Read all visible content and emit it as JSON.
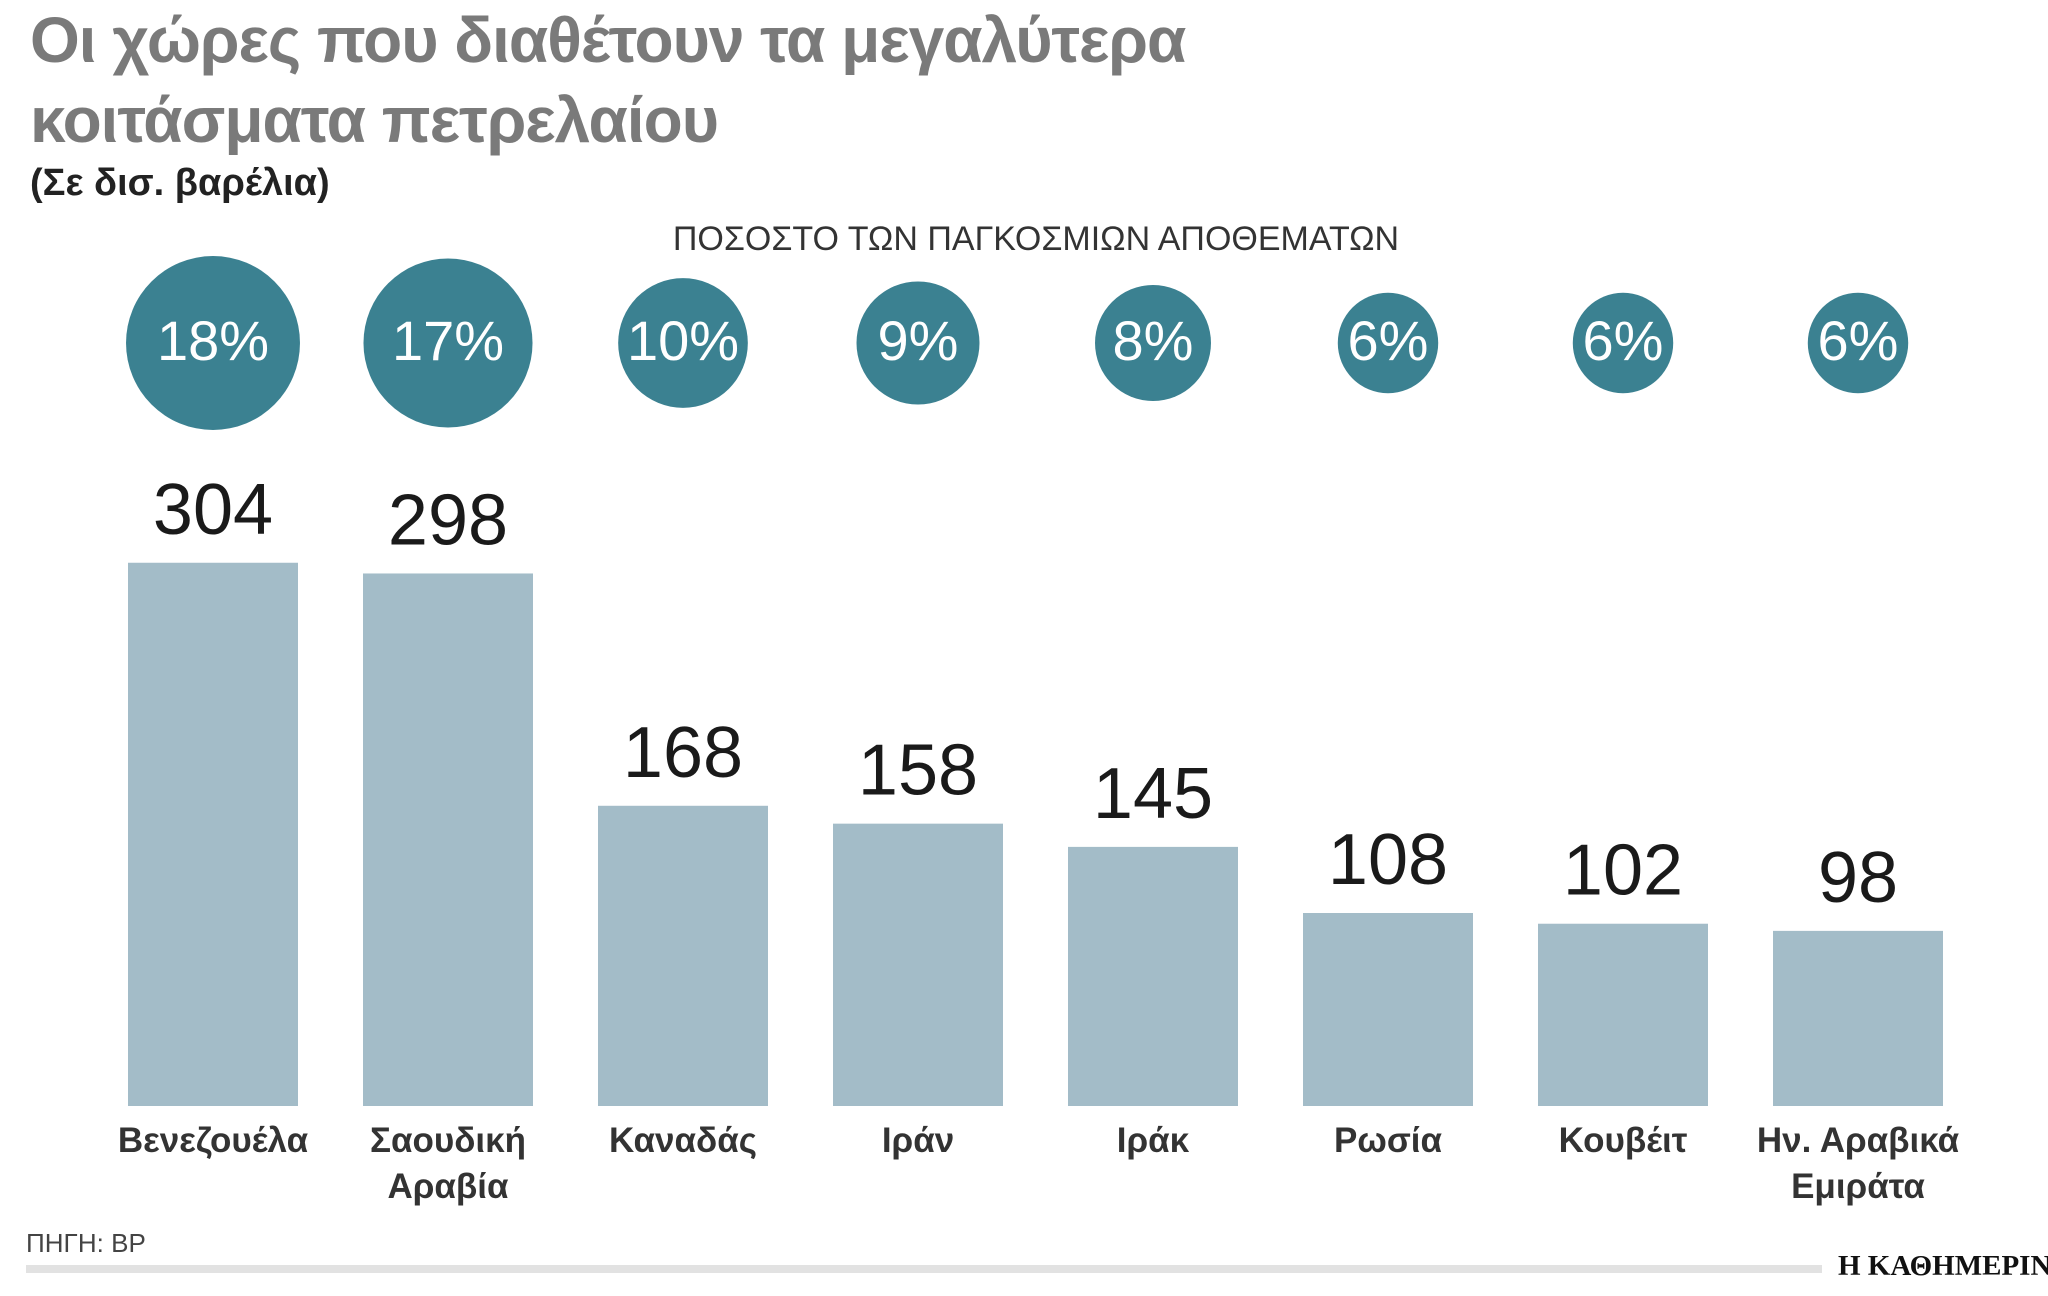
{
  "chart_data": {
    "type": "bar",
    "title": "Οι χώρες που διαθέτουν τα μεγαλύτερα κοιτάσματα πετρελαίου",
    "subtitle": "(Σε δισ. βαρέλια)",
    "categories": [
      "Βενεζουέλα",
      "Σαουδική Αραβία",
      "Καναδάς",
      "Ιράν",
      "Ιράκ",
      "Ρωσία",
      "Κουβέιτ",
      "Ην. Αραβικά Εμιράτα"
    ],
    "series": [
      {
        "color": "#a3bcc8",
        "values": [
          304,
          298,
          168,
          158,
          145,
          108,
          102,
          98
        ]
      },
      {
        "name": "ΠΟΣΟΣΤΟ ΤΩΝ ΠΑΓΚΟΣΜΙΩΝ ΑΠΟΘΕΜΑΤΩΝ",
        "color": "#3b8191",
        "values": [
          18,
          17,
          10,
          9,
          8,
          6,
          6,
          6
        ],
        "value_labels": [
          "18%",
          "17%",
          "10%",
          "9%",
          "8%",
          "6%",
          "6%",
          "6%"
        ]
      }
    ],
    "source": "ΠΗΓΗ: BP",
    "brand": "Η ΚΑΘΗΜΕΡΙΝΗ"
  }
}
